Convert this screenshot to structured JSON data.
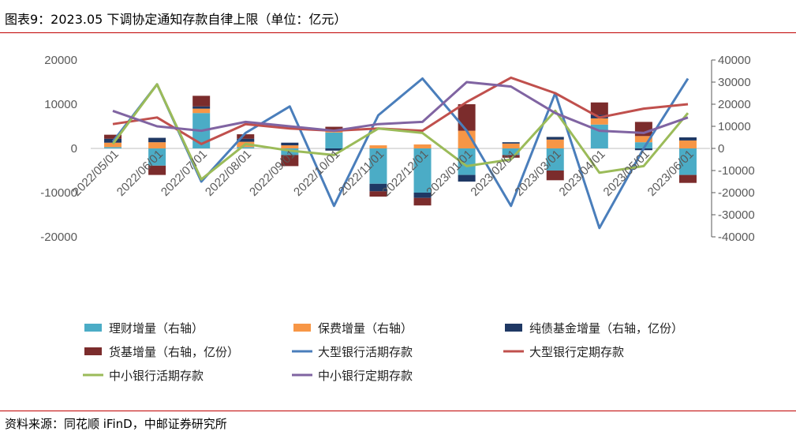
{
  "header": {
    "title": "图表9：2023.05 下调协定通知存款自律上限（单位：亿元）"
  },
  "footer": {
    "source": "资料来源：同花顺 iFinD，中邮证券研究所"
  },
  "chart_data": {
    "type": "bar",
    "categories": [
      "2022/05/01",
      "2022/06/01",
      "2022/07/01",
      "2022/08/01",
      "2022/09/01",
      "2022/10/01",
      "2022/11/01",
      "2022/12/01",
      "2023/01/01",
      "2023/02/01",
      "2023/03/01",
      "2023/04/01",
      "2023/05/01",
      "2023/06/01"
    ],
    "left_axis": {
      "min": -20000,
      "max": 20000,
      "ticks": [
        20000,
        10000,
        0,
        -10000,
        -20000
      ]
    },
    "right_axis": {
      "min": -40000,
      "max": 40000,
      "ticks": [
        40000,
        30000,
        20000,
        10000,
        0,
        -10000,
        -20000,
        -30000,
        -40000
      ]
    },
    "colors": {
      "wealth": "#4bacc6",
      "insurance": "#f79646",
      "bond": "#1f3864",
      "money": "#7b2c2c",
      "big_demand": "#4a7ebb",
      "big_time": "#c0504d",
      "small_demand": "#9bbb59",
      "small_time": "#8064a2"
    },
    "series": [
      {
        "name": "理财增量（右轴）",
        "key": "wealth",
        "axis": "right",
        "kind": "bar",
        "values": [
          600,
          -7800,
          16000,
          600,
          -3000,
          7200,
          -16000,
          -20000,
          -12000,
          -3000,
          -10000,
          10800,
          2800,
          -12000
        ]
      },
      {
        "name": "保费增量（右轴）",
        "key": "insurance",
        "axis": "right",
        "kind": "bar",
        "values": [
          2000,
          2800,
          2000,
          2400,
          1400,
          600,
          1400,
          1800,
          8000,
          2200,
          4000,
          2800,
          2800,
          3600
        ]
      },
      {
        "name": "纯债基金增量（右轴，亿份）",
        "key": "bond",
        "axis": "right",
        "kind": "bar",
        "values": [
          1800,
          2000,
          1000,
          1400,
          1200,
          -1000,
          -3400,
          -2400,
          -3000,
          600,
          1200,
          1600,
          -800,
          1400
        ]
      },
      {
        "name": "货基增量（右轴，亿份）",
        "key": "money",
        "axis": "right",
        "kind": "bar",
        "values": [
          1800,
          -4200,
          4800,
          2000,
          -5000,
          2000,
          -2400,
          -3400,
          12000,
          -1200,
          -4400,
          5600,
          6400,
          -3600
        ]
      },
      {
        "name": "大型银行活期存款",
        "key": "big_demand",
        "axis": "left",
        "kind": "line",
        "values": [
          1500,
          14500,
          -7500,
          3500,
          9500,
          -13000,
          7500,
          15800,
          4000,
          -13000,
          12500,
          -18000,
          0,
          15800
        ]
      },
      {
        "name": "大型银行定期存款",
        "key": "big_time",
        "axis": "left",
        "kind": "line",
        "values": [
          5500,
          7000,
          1000,
          5500,
          4500,
          4000,
          4500,
          4000,
          10500,
          16000,
          12500,
          7000,
          9000,
          10000
        ]
      },
      {
        "name": "中小银行活期存款",
        "key": "small_demand",
        "axis": "left",
        "kind": "line",
        "values": [
          1000,
          14500,
          -7000,
          1000,
          -500,
          -1500,
          4500,
          3500,
          -4000,
          -2500,
          8500,
          -5500,
          -4000,
          8000
        ]
      },
      {
        "name": "中小银行定期存款",
        "key": "small_time",
        "axis": "left",
        "kind": "line",
        "values": [
          8500,
          5000,
          4000,
          6000,
          5000,
          4000,
          5500,
          6000,
          15000,
          14000,
          8000,
          4000,
          3500,
          7000
        ]
      }
    ]
  }
}
